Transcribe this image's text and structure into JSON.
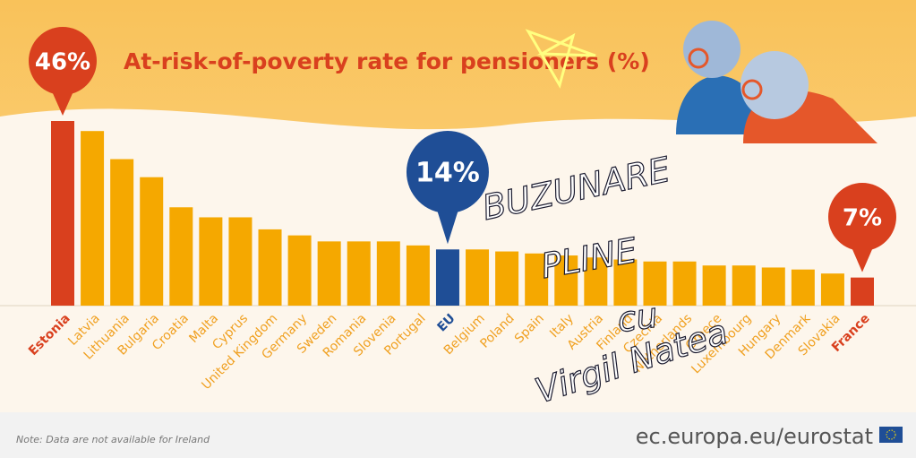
{
  "chart_data": {
    "type": "bar",
    "title": "At-risk-of-poverty rate for pensioners (%)",
    "categories": [
      "Estonia",
      "Latvia",
      "Lithuania",
      "Bulgaria",
      "Croatia",
      "Malta",
      "Cyprus",
      "United Kingdom",
      "Germany",
      "Sweden",
      "Romania",
      "Slovenia",
      "Portugal",
      "EU",
      "Belgium",
      "Poland",
      "Spain",
      "Italy",
      "Austria",
      "Finland",
      "Czechia",
      "Netherlands",
      "Greece",
      "Luxembourg",
      "Hungary",
      "Denmark",
      "Slovakia",
      "France"
    ],
    "values": [
      46,
      43.5,
      36.5,
      32,
      24.5,
      22,
      22,
      19,
      17.5,
      16,
      16,
      16,
      15,
      14,
      14,
      13.5,
      13,
      12.5,
      12,
      11.5,
      11,
      11,
      10,
      10,
      9.5,
      9,
      8,
      7
    ],
    "value_labels": [
      "46%",
      null,
      null,
      null,
      null,
      null,
      null,
      null,
      null,
      null,
      null,
      null,
      null,
      "14%",
      null,
      null,
      null,
      null,
      null,
      null,
      null,
      null,
      null,
      null,
      null,
      null,
      null,
      "7%"
    ],
    "colors": [
      "#d9401e",
      "#f5a800",
      "#f5a800",
      "#f5a800",
      "#f5a800",
      "#f5a800",
      "#f5a800",
      "#f5a800",
      "#f5a800",
      "#f5a800",
      "#f5a800",
      "#f5a800",
      "#f5a800",
      "#1f4e96",
      "#f5a800",
      "#f5a800",
      "#f5a800",
      "#f5a800",
      "#f5a800",
      "#f5a800",
      "#f5a800",
      "#f5a800",
      "#f5a800",
      "#f5a800",
      "#f5a800",
      "#f5a800",
      "#f5a800",
      "#d9401e"
    ],
    "ylim": [
      0,
      46
    ],
    "note": "Note:  Data are not available for Ireland",
    "source": "ec.europa.eu/eurostat",
    "annotations": [
      "BUZUNARE",
      "PLINE",
      "cu",
      "Virgil Natea"
    ]
  }
}
